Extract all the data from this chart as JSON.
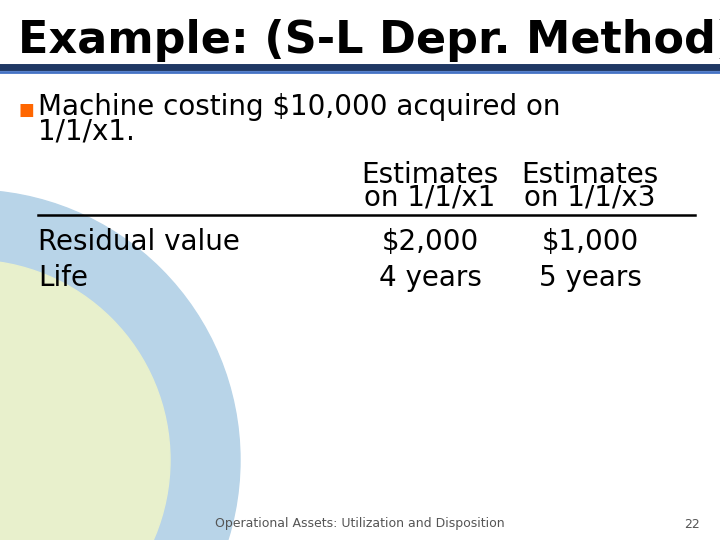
{
  "title": "Example: (S-L Depr. Method)",
  "bg_color": "#FFFFFF",
  "title_color": "#000000",
  "title_fontsize": 32,
  "bullet_line1": "Machine costing $10,000 acquired on",
  "bullet_line2": "1/1/x1.",
  "bullet_color": "#000000",
  "bullet_fontsize": 20,
  "bullet_marker": "■",
  "bullet_marker_color": "#FF6600",
  "separator_color_top": "#1F3864",
  "separator_color_bottom": "#4472C4",
  "header_col1": [
    "Estimates",
    "on 1/1/x1"
  ],
  "header_col2": [
    "Estimates",
    "on 1/1/x3"
  ],
  "table_rows": [
    [
      "Residual value",
      "$2,000",
      "$1,000"
    ],
    [
      "Life",
      "4 years",
      "5 years"
    ]
  ],
  "table_fontsize": 20,
  "footer_text": "Operational Assets: Utilization and Disposition",
  "footer_page": "22",
  "footer_fontsize": 9,
  "footer_color": "#555555",
  "circle_color_outer": "#B8D4E8",
  "circle_color_inner": "#E8F0CC"
}
